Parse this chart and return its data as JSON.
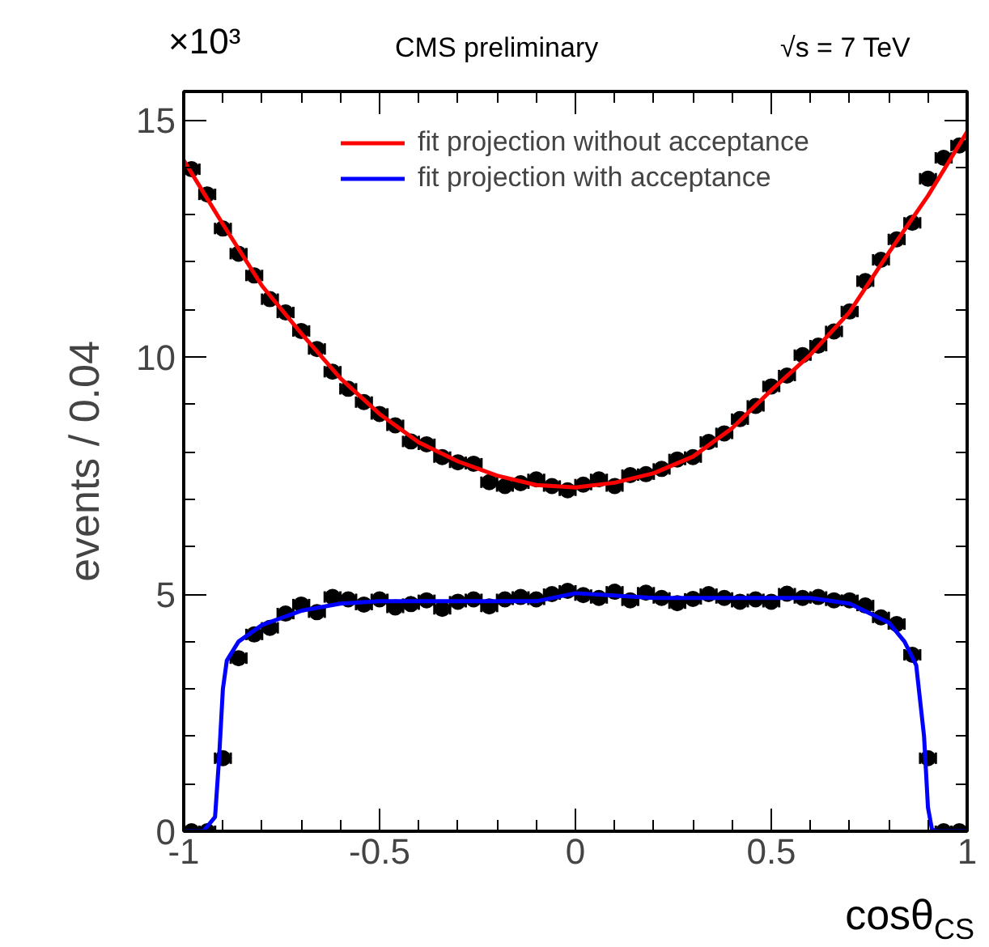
{
  "chart_data": {
    "type": "scatter",
    "title": "CMS preliminary",
    "xlabel": "cosθ$_{CS}$",
    "ylabel": "events / 0.04",
    "annotations": [
      "×10³",
      "√s = 7 TeV"
    ],
    "xlim": [
      -1,
      1
    ],
    "xticks": [
      -1,
      -0.5,
      0,
      0.5,
      1
    ],
    "ylim": [
      0,
      15.6
    ],
    "yticks": [
      0,
      5,
      10,
      15
    ],
    "grid": false,
    "legend": "top",
    "x": [
      -0.98,
      -0.94,
      -0.9,
      -0.86,
      -0.82,
      -0.78,
      -0.74,
      -0.7,
      -0.66,
      -0.62,
      -0.58,
      -0.54,
      -0.5,
      -0.46,
      -0.42,
      -0.38,
      -0.34,
      -0.3,
      -0.26,
      -0.22,
      -0.18,
      -0.14,
      -0.1,
      -0.06,
      -0.02,
      0.02,
      0.06,
      0.1,
      0.14,
      0.18,
      0.22,
      0.26,
      0.3,
      0.34,
      0.38,
      0.42,
      0.46,
      0.5,
      0.54,
      0.58,
      0.62,
      0.66,
      0.7,
      0.74,
      0.78,
      0.82,
      0.86,
      0.9,
      0.94,
      0.98
    ],
    "series": [
      {
        "marker": "circle",
        "color": "#000000",
        "values": [
          13.96,
          13.43,
          12.71,
          12.18,
          11.72,
          11.22,
          10.94,
          10.55,
          10.17,
          9.69,
          9.33,
          9.05,
          8.8,
          8.56,
          8.22,
          8.16,
          7.89,
          7.78,
          7.75,
          7.36,
          7.28,
          7.34,
          7.42,
          7.28,
          7.19,
          7.31,
          7.42,
          7.28,
          7.51,
          7.53,
          7.64,
          7.84,
          7.89,
          8.21,
          8.39,
          8.69,
          8.97,
          9.38,
          9.61,
          10.04,
          10.24,
          10.54,
          10.96,
          11.6,
          12.05,
          12.48,
          12.83,
          13.76,
          14.2,
          14.46
        ],
        "xerrors": [
          0.02,
          0.02,
          0.02,
          0.02,
          0.02,
          0.02,
          0.02,
          0.02,
          0.02,
          0.02,
          0.02,
          0.02,
          0.02,
          0.02,
          0.02,
          0.02,
          0.02,
          0.02,
          0.02,
          0.02,
          0.02,
          0.02,
          0.02,
          0.02,
          0.02,
          0.02,
          0.02,
          0.02,
          0.02,
          0.02,
          0.02,
          0.02,
          0.02,
          0.02,
          0.02,
          0.02,
          0.02,
          0.02,
          0.02,
          0.02,
          0.02,
          0.02,
          0.02,
          0.02,
          0.02,
          0.02,
          0.02,
          0.02,
          0.02,
          0.02
        ]
      },
      {
        "marker": "circle",
        "color": "#000000",
        "values": [
          0,
          0,
          1.54,
          3.65,
          4.15,
          4.29,
          4.59,
          4.78,
          4.62,
          4.94,
          4.89,
          4.78,
          4.89,
          4.72,
          4.79,
          4.87,
          4.69,
          4.84,
          4.89,
          4.74,
          4.89,
          4.94,
          4.89,
          5.0,
          5.07,
          4.98,
          4.92,
          5.05,
          4.87,
          5.03,
          4.92,
          4.81,
          4.9,
          5.0,
          4.92,
          4.84,
          4.89,
          4.84,
          5.01,
          4.92,
          4.94,
          4.87,
          4.87,
          4.76,
          4.51,
          4.37,
          3.72,
          1.54,
          0,
          0
        ],
        "xerrors": [
          0.02,
          0.02,
          0.02,
          0.02,
          0.02,
          0.02,
          0.02,
          0.02,
          0.02,
          0.02,
          0.02,
          0.02,
          0.02,
          0.02,
          0.02,
          0.02,
          0.02,
          0.02,
          0.02,
          0.02,
          0.02,
          0.02,
          0.02,
          0.02,
          0.02,
          0.02,
          0.02,
          0.02,
          0.02,
          0.02,
          0.02,
          0.02,
          0.02,
          0.02,
          0.02,
          0.02,
          0.02,
          0.02,
          0.02,
          0.02,
          0.02,
          0.02,
          0.02,
          0.02,
          0.02,
          0.02,
          0.02,
          0.02,
          0.02,
          0.02
        ]
      },
      {
        "type": "line",
        "name": "fit projection without acceptance",
        "color": "#ff0000",
        "x": [
          -1,
          -0.9,
          -0.8,
          -0.7,
          -0.6,
          -0.5,
          -0.4,
          -0.3,
          -0.2,
          -0.1,
          0,
          0.1,
          0.2,
          0.3,
          0.4,
          0.5,
          0.6,
          0.7,
          0.8,
          0.9,
          1
        ],
        "values": [
          14.15,
          12.8,
          11.5,
          10.5,
          9.55,
          8.8,
          8.2,
          7.8,
          7.5,
          7.3,
          7.25,
          7.35,
          7.55,
          7.9,
          8.5,
          9.3,
          10.05,
          10.95,
          12.2,
          13.4,
          14.75
        ]
      },
      {
        "type": "line",
        "name": "fit projection with acceptance",
        "color": "#0000ff",
        "x": [
          -1,
          -0.95,
          -0.92,
          -0.91,
          -0.9,
          -0.89,
          -0.86,
          -0.8,
          -0.7,
          -0.6,
          -0.5,
          -0.3,
          -0.1,
          0,
          0.2,
          0.4,
          0.6,
          0.7,
          0.8,
          0.84,
          0.87,
          0.89,
          0.9,
          0.91,
          0.92,
          1
        ],
        "values": [
          0,
          0,
          0.3,
          1.5,
          3.0,
          3.6,
          4.0,
          4.35,
          4.65,
          4.8,
          4.85,
          4.85,
          4.85,
          5.02,
          4.92,
          4.92,
          4.92,
          4.8,
          4.4,
          4.0,
          3.5,
          2.0,
          0.5,
          0.05,
          0,
          0
        ]
      }
    ]
  }
}
